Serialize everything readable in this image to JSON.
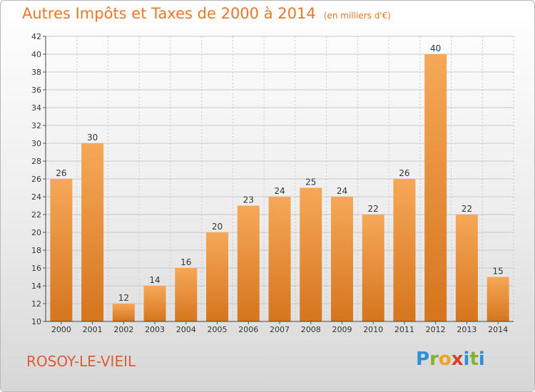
{
  "header": {
    "title": "Autres Impôts et Taxes de 2000 à 2014",
    "subtitle": "(en milliers d'€)"
  },
  "footer": {
    "commune": "ROSOY-LE-VIEIL",
    "logo_letters": [
      "P",
      "r",
      "o",
      "x",
      "i",
      "t",
      "i"
    ],
    "logo_colors": [
      "#2f8fd8",
      "#7fb236",
      "#f2a01f",
      "#e23b2e",
      "#2f8fd8",
      "#7fb236",
      "#2f8fd8"
    ]
  },
  "colors": {
    "bar_light": "#f6a858",
    "bar_dark": "#d5751d",
    "title": "#e8772a",
    "commune": "#e05a3a",
    "grid": "#c8c8c8"
  },
  "chart_data": {
    "type": "bar",
    "title": "Autres Impôts et Taxes de 2000 à 2014",
    "subtitle": "(en milliers d'€)",
    "categories": [
      "2000",
      "2001",
      "2002",
      "2003",
      "2004",
      "2005",
      "2006",
      "2007",
      "2008",
      "2009",
      "2010",
      "2011",
      "2012",
      "2013",
      "2014"
    ],
    "values": [
      26,
      30,
      12,
      14,
      16,
      20,
      23,
      24,
      25,
      24,
      22,
      26,
      40,
      22,
      15
    ],
    "ylim": [
      10,
      42
    ],
    "yticks": [
      10,
      12,
      14,
      16,
      18,
      20,
      22,
      24,
      26,
      28,
      30,
      32,
      34,
      36,
      38,
      40,
      42
    ],
    "grid": true,
    "data_labels": true
  }
}
